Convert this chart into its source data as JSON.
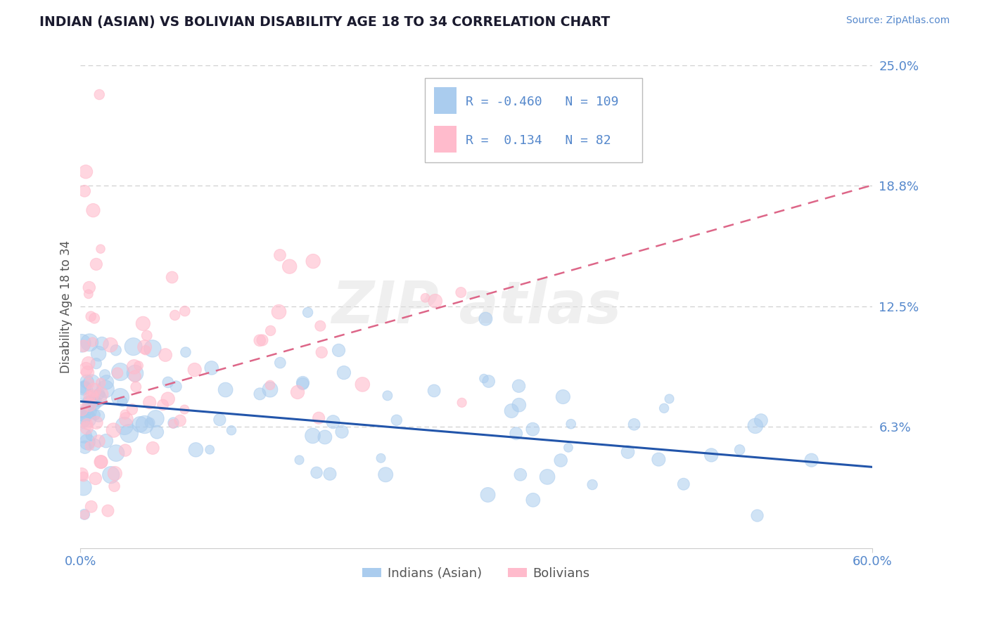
{
  "title": "INDIAN (ASIAN) VS BOLIVIAN DISABILITY AGE 18 TO 34 CORRELATION CHART",
  "source": "Source: ZipAtlas.com",
  "ylabel": "Disability Age 18 to 34",
  "legend_labels": [
    "Indians (Asian)",
    "Bolivians"
  ],
  "blue_R": -0.46,
  "blue_N": 109,
  "pink_R": 0.134,
  "pink_N": 82,
  "xlim": [
    0.0,
    0.6
  ],
  "ylim": [
    0.0,
    0.25
  ],
  "ytick_labels_right": [
    "25.0%",
    "18.8%",
    "12.5%",
    "6.3%"
  ],
  "ytick_values_right": [
    0.25,
    0.188,
    0.125,
    0.063
  ],
  "grid_color": "#cccccc",
  "blue_color": "#aaccee",
  "pink_color": "#ffbbcc",
  "blue_line_color": "#2255aa",
  "pink_line_color": "#dd6688",
  "watermark_color": "#dddddd",
  "title_color": "#1a1a2e",
  "tick_color": "#5588cc",
  "axis_label_color": "#555555",
  "blue_scatter_seed": 42,
  "pink_scatter_seed": 123,
  "blue_trend_start_y": 0.076,
  "blue_trend_end_y": 0.042,
  "pink_trend_start_y": 0.072,
  "pink_trend_end_y": 0.188
}
